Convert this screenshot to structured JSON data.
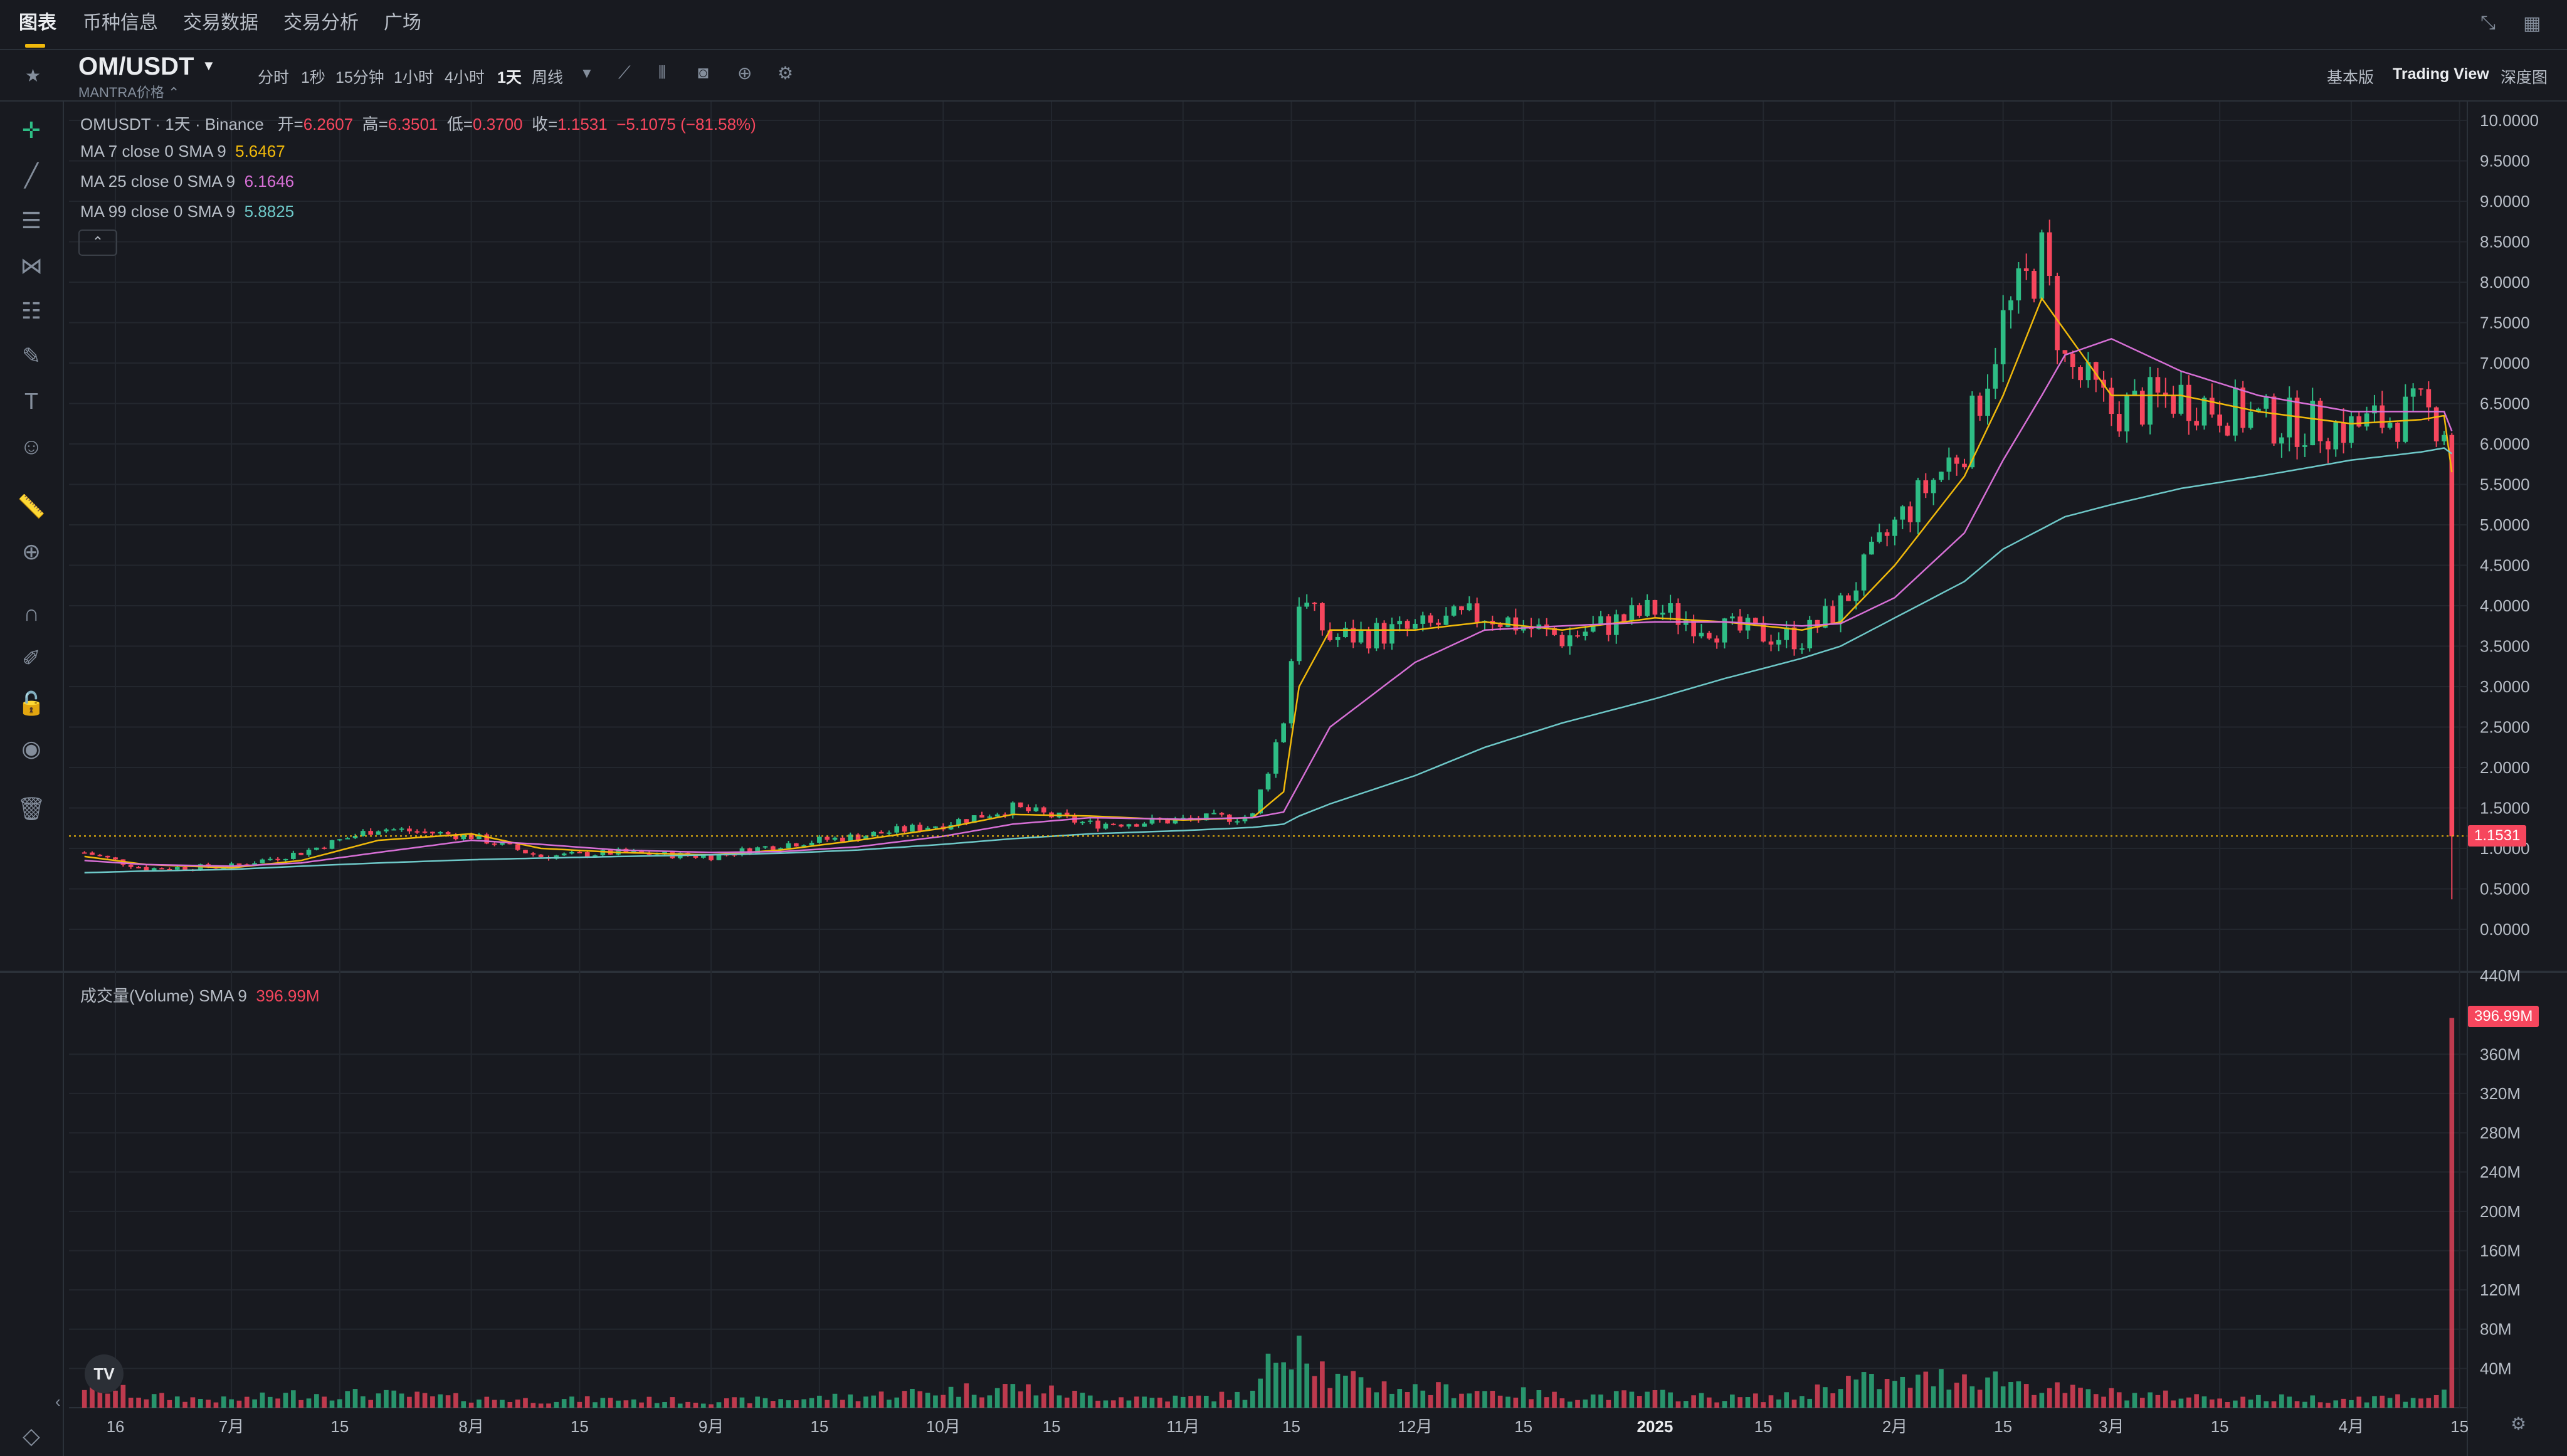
{
  "nav": {
    "tabs": [
      "图表",
      "币种信息",
      "交易数据",
      "交易分析",
      "广场"
    ],
    "active_tab": "图表"
  },
  "header": {
    "symbol": "OM/USDT",
    "subtitle": "MANTRA价格 ⌃",
    "timeframes": [
      "分时",
      "1秒",
      "15分钟",
      "1小时",
      "4小时",
      "1天",
      "周线"
    ],
    "active_timeframe": "1天",
    "views": [
      "基本版",
      "Trading View",
      "深度图"
    ],
    "active_view": "Trading View"
  },
  "legend": {
    "title": "OMUSDT · 1天 · Binance",
    "o_label": "开=",
    "o_val": "6.2607",
    "h_label": "高=",
    "h_val": "6.3501",
    "l_label": "低=",
    "l_val": "0.3700",
    "c_label": "收=",
    "c_val": "1.1531",
    "change": "−5.1075 (−81.58%)",
    "ma7_label": "MA 7 close 0 SMA 9",
    "ma7_val": "5.6467",
    "ma25_label": "MA 25 close 0 SMA 9",
    "ma25_val": "6.1646",
    "ma99_label": "MA 99 close 0 SMA 9",
    "ma99_val": "5.8825",
    "collapse": "⌃"
  },
  "volume_legend": {
    "label": "成交量(Volume) SMA 9",
    "value": "396.99M"
  },
  "price_axis": [
    "10.0000",
    "9.5000",
    "9.0000",
    "8.5000",
    "8.0000",
    "7.5000",
    "7.0000",
    "6.5000",
    "6.0000",
    "5.5000",
    "5.0000",
    "4.5000",
    "4.0000",
    "3.5000",
    "3.0000",
    "2.5000",
    "2.0000",
    "1.5000",
    "1.0000",
    "0.5000",
    "0.0000"
  ],
  "volume_axis": [
    "440M",
    "360M",
    "320M",
    "280M",
    "240M",
    "200M",
    "160M",
    "120M",
    "80M",
    "40M"
  ],
  "time_axis": [
    "16",
    "7月",
    "15",
    "8月",
    "15",
    "9月",
    "15",
    "10月",
    "15",
    "11月",
    "15",
    "12月",
    "15",
    "2025",
    "15",
    "2月",
    "15",
    "3月",
    "15",
    "4月",
    "15"
  ],
  "last_price_badge": "1.1531",
  "last_volume_badge": "396.99M",
  "colors": {
    "up": "#2ebd85",
    "down": "#f6465d",
    "ma7": "#f0b90b",
    "ma25": "#d66fd5",
    "ma99": "#6ec8c8",
    "bg": "#181a20",
    "accent": "#f0b90b"
  },
  "chart_data": {
    "type": "line",
    "title": "OMUSDT · 1天 · Binance",
    "ylim": [
      0,
      10
    ],
    "x": [
      "2024-06-12",
      "2024-06-20",
      "2024-07-01",
      "2024-07-10",
      "2024-07-20",
      "2024-08-01",
      "2024-08-10",
      "2024-08-20",
      "2024-09-01",
      "2024-09-10",
      "2024-09-20",
      "2024-10-01",
      "2024-10-10",
      "2024-10-20",
      "2024-11-01",
      "2024-11-10",
      "2024-11-14",
      "2024-11-16",
      "2024-11-20",
      "2024-12-01",
      "2024-12-10",
      "2024-12-20",
      "2025-01-01",
      "2025-01-10",
      "2025-01-20",
      "2025-01-25",
      "2025-02-01",
      "2025-02-10",
      "2025-02-15",
      "2025-02-20",
      "2025-02-23",
      "2025-03-01",
      "2025-03-10",
      "2025-03-20",
      "2025-04-01",
      "2025-04-10",
      "2025-04-13",
      "2025-04-14"
    ],
    "series": [
      {
        "name": "close",
        "values": [
          0.95,
          0.75,
          0.78,
          0.95,
          1.25,
          1.15,
          0.9,
          0.95,
          0.9,
          1.05,
          1.15,
          1.3,
          1.5,
          1.3,
          1.35,
          1.4,
          2.6,
          4.1,
          3.6,
          3.7,
          3.9,
          3.6,
          3.95,
          3.7,
          3.6,
          4.0,
          5.0,
          6.0,
          7.5,
          8.3,
          7.0,
          6.4,
          6.6,
          6.3,
          6.2,
          6.4,
          6.26,
          1.15
        ]
      },
      {
        "name": "MA 7",
        "values": [
          0.9,
          0.8,
          0.76,
          0.85,
          1.1,
          1.18,
          1.0,
          0.95,
          0.92,
          0.98,
          1.1,
          1.25,
          1.42,
          1.4,
          1.35,
          1.38,
          1.7,
          3.0,
          3.7,
          3.7,
          3.8,
          3.7,
          3.85,
          3.8,
          3.7,
          3.8,
          4.5,
          5.6,
          6.6,
          7.8,
          7.4,
          6.6,
          6.6,
          6.4,
          6.25,
          6.3,
          6.35,
          5.65
        ]
      },
      {
        "name": "MA 25",
        "values": [
          0.85,
          0.8,
          0.78,
          0.82,
          0.95,
          1.1,
          1.05,
          0.98,
          0.95,
          0.96,
          1.02,
          1.15,
          1.3,
          1.38,
          1.36,
          1.38,
          1.45,
          1.8,
          2.5,
          3.3,
          3.7,
          3.75,
          3.8,
          3.8,
          3.75,
          3.78,
          4.1,
          4.9,
          5.8,
          6.6,
          7.1,
          7.3,
          6.9,
          6.6,
          6.4,
          6.4,
          6.4,
          6.16
        ]
      },
      {
        "name": "MA 99",
        "values": [
          0.7,
          0.72,
          0.74,
          0.78,
          0.82,
          0.86,
          0.88,
          0.9,
          0.92,
          0.94,
          0.98,
          1.05,
          1.12,
          1.18,
          1.22,
          1.26,
          1.3,
          1.4,
          1.55,
          1.9,
          2.25,
          2.55,
          2.85,
          3.1,
          3.35,
          3.5,
          3.85,
          4.3,
          4.7,
          4.95,
          5.1,
          5.25,
          5.45,
          5.6,
          5.8,
          5.9,
          5.95,
          5.88
        ]
      }
    ],
    "volume_m": [
      25,
      12,
      8,
      15,
      14,
      10,
      8,
      9,
      7,
      9,
      12,
      18,
      22,
      12,
      10,
      14,
      70,
      85,
      30,
      20,
      18,
      12,
      14,
      10,
      12,
      30,
      25,
      35,
      30,
      22,
      18,
      15,
      12,
      10,
      10,
      12,
      14,
      397
    ]
  }
}
